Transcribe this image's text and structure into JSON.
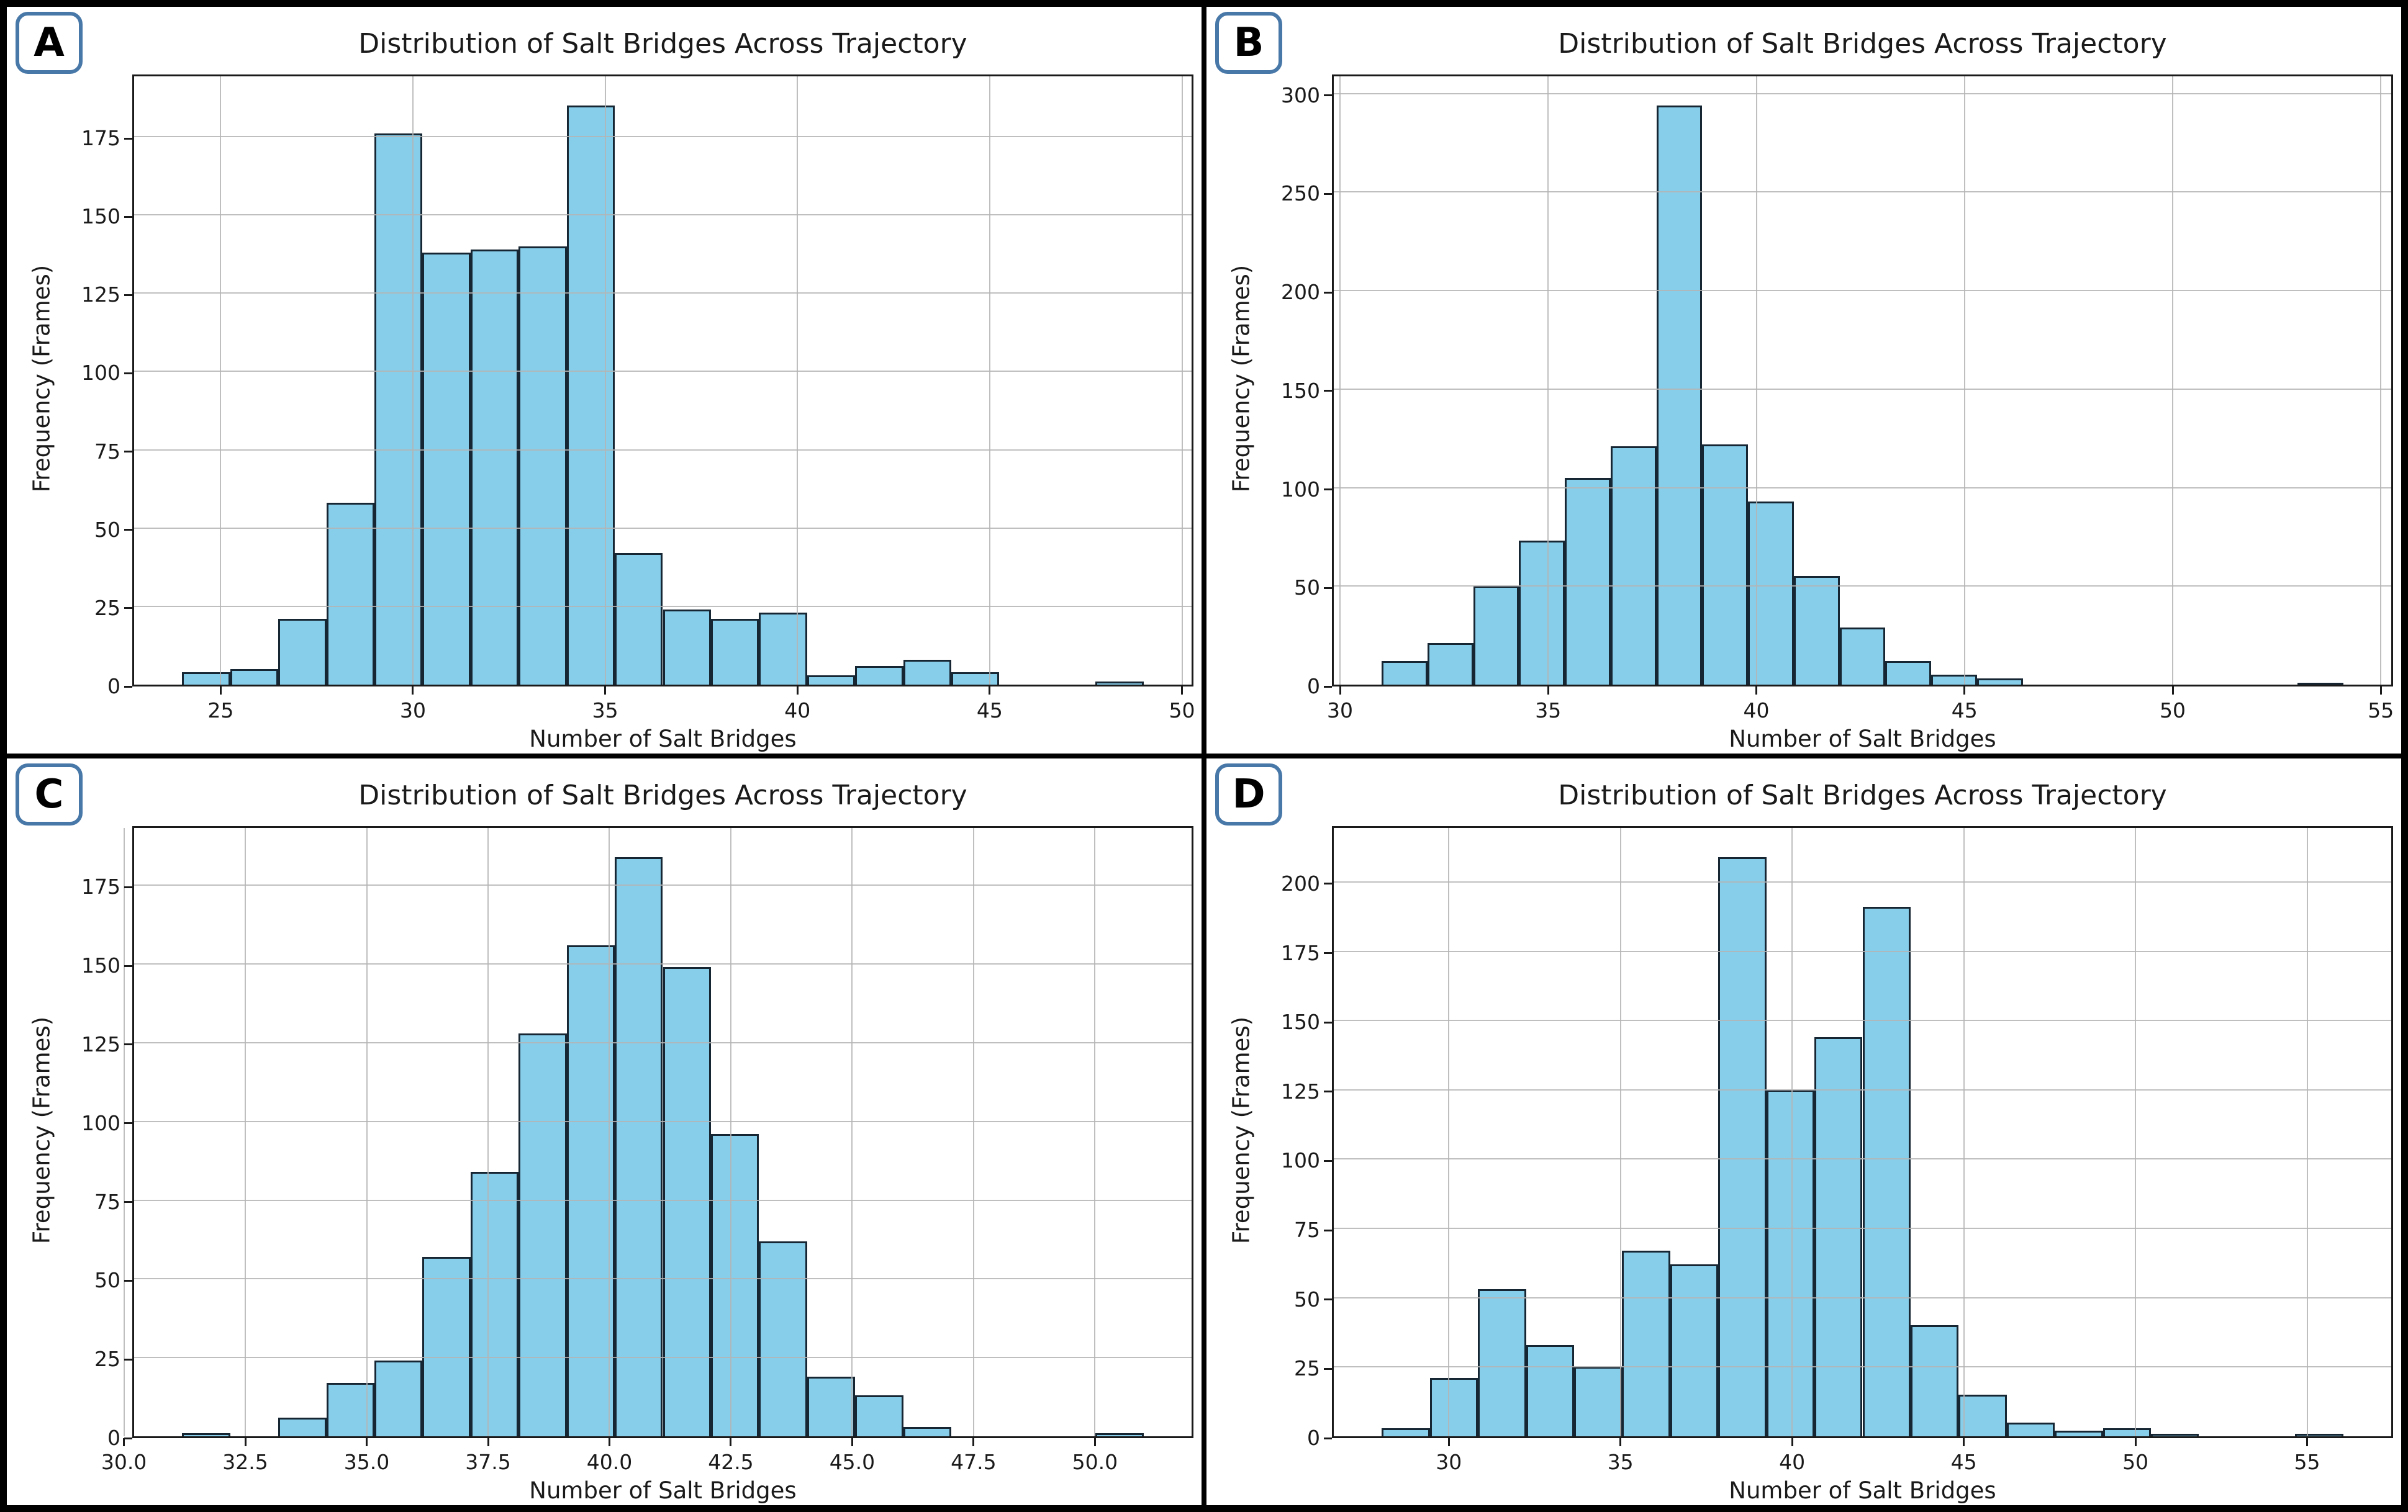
{
  "figure": {
    "background": "#ffffff",
    "frame_color": "#000000",
    "bar_fill": "#87CEEB",
    "bar_edge": "#172633",
    "grid_color": "#b4b4b4",
    "spine_color": "#1a1a1a",
    "badge_border": "#4878a8"
  },
  "chart_data": [
    {
      "badge": "A",
      "type": "histogram",
      "title": "Distribution of Salt Bridges Across Trajectory",
      "xlabel": "Number of Salt Bridges",
      "ylabel": "Frequency (Frames)",
      "bin_start": 24.0,
      "bin_width": 1.25,
      "counts": [
        4,
        5,
        21,
        58,
        176,
        138,
        139,
        140,
        185,
        42,
        24,
        21,
        23,
        3,
        6,
        8,
        4,
        0,
        0,
        1
      ],
      "xlim": [
        22.75,
        50.25
      ],
      "ylim": [
        0,
        194.25
      ],
      "xticks": [
        25,
        30,
        35,
        40,
        45,
        50
      ],
      "xtick_labels": [
        "25",
        "30",
        "35",
        "40",
        "45",
        "50"
      ],
      "yticks": [
        0,
        25,
        50,
        75,
        100,
        125,
        150,
        175
      ],
      "ytick_labels": [
        "0",
        "25",
        "50",
        "75",
        "100",
        "125",
        "150",
        "175"
      ],
      "grid": true,
      "legend": null
    },
    {
      "badge": "B",
      "type": "histogram",
      "title": "Distribution of Salt Bridges Across Trajectory",
      "xlabel": "Number of Salt Bridges",
      "ylabel": "Frequency (Frames)",
      "bin_start": 31.0,
      "bin_width": 1.1,
      "counts": [
        12,
        21,
        50,
        73,
        105,
        121,
        294,
        122,
        93,
        55,
        29,
        12,
        5,
        3,
        0,
        0,
        0,
        0,
        0,
        0,
        1
      ],
      "xlim": [
        29.85,
        55.25
      ],
      "ylim": [
        0,
        308.7
      ],
      "xticks": [
        30,
        35,
        40,
        45,
        50,
        55
      ],
      "xtick_labels": [
        "30",
        "35",
        "40",
        "45",
        "50",
        "55"
      ],
      "yticks": [
        0,
        50,
        100,
        150,
        200,
        250,
        300
      ],
      "ytick_labels": [
        "0",
        "50",
        "100",
        "150",
        "200",
        "250",
        "300"
      ],
      "grid": true,
      "legend": null
    },
    {
      "badge": "C",
      "type": "histogram",
      "title": "Distribution of Salt Bridges Across Trajectory",
      "xlabel": "Number of Salt Bridges",
      "ylabel": "Frequency (Frames)",
      "bin_start": 31.2,
      "bin_width": 0.99,
      "counts": [
        1,
        0,
        6,
        17,
        24,
        57,
        84,
        128,
        156,
        184,
        149,
        96,
        62,
        19,
        13,
        3,
        0,
        0,
        0,
        1
      ],
      "xlim": [
        30.21,
        51.99
      ],
      "ylim": [
        0,
        193.2
      ],
      "xticks": [
        30.0,
        32.5,
        35.0,
        37.5,
        40.0,
        42.5,
        45.0,
        47.5,
        50.0
      ],
      "xtick_labels": [
        "30.0",
        "32.5",
        "35.0",
        "37.5",
        "40.0",
        "42.5",
        "45.0",
        "47.5",
        "50.0"
      ],
      "yticks": [
        0,
        25,
        50,
        75,
        100,
        125,
        150,
        175
      ],
      "ytick_labels": [
        "0",
        "25",
        "50",
        "75",
        "100",
        "125",
        "150",
        "175"
      ],
      "grid": true,
      "legend": null
    },
    {
      "badge": "D",
      "type": "histogram",
      "title": "Distribution of Salt Bridges Across Trajectory",
      "xlabel": "Number of Salt Bridges",
      "ylabel": "Frequency (Frames)",
      "bin_start": 28.05,
      "bin_width": 1.4,
      "counts": [
        3,
        21,
        53,
        33,
        25,
        67,
        62,
        209,
        125,
        144,
        191,
        40,
        15,
        5,
        2,
        3,
        1,
        0,
        0,
        1
      ],
      "xlim": [
        26.65,
        57.45
      ],
      "ylim": [
        0,
        219.45
      ],
      "xticks": [
        30,
        35,
        40,
        45,
        50,
        55
      ],
      "xtick_labels": [
        "30",
        "35",
        "40",
        "45",
        "50",
        "55"
      ],
      "yticks": [
        0,
        25,
        50,
        75,
        100,
        125,
        150,
        175,
        200
      ],
      "ytick_labels": [
        "0",
        "25",
        "50",
        "75",
        "100",
        "125",
        "150",
        "175",
        "200"
      ],
      "grid": true,
      "legend": null
    }
  ]
}
